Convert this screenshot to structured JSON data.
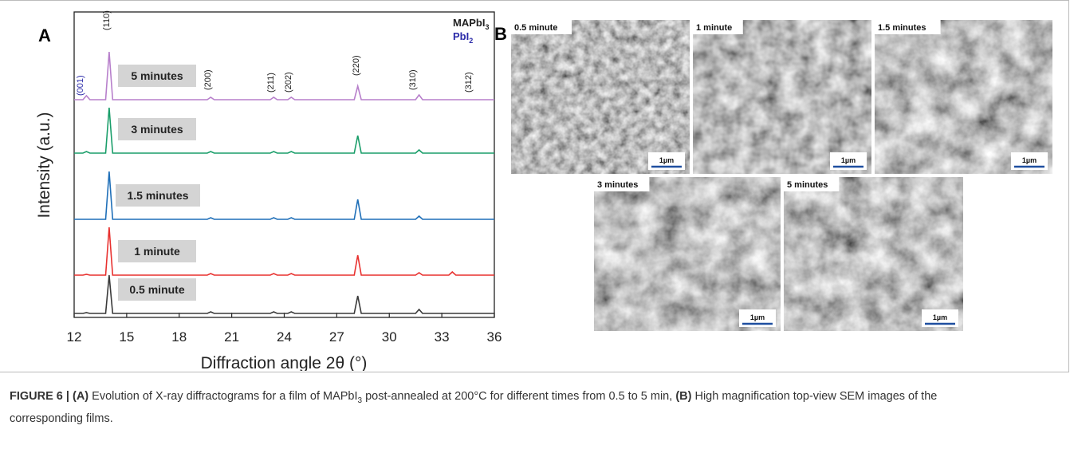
{
  "chart_data": {
    "type": "line",
    "panel": "A",
    "xlabel": "Diffraction angle 2θ (°)",
    "ylabel": "Intensity (a.u.)",
    "xlim": [
      12,
      36
    ],
    "xticks": [
      12,
      15,
      18,
      21,
      24,
      27,
      30,
      33,
      36
    ],
    "x": [
      12,
      12.5,
      12.7,
      12.9,
      13.8,
      14.0,
      14.2,
      19.6,
      19.8,
      20.0,
      23.2,
      23.4,
      23.6,
      24.2,
      24.4,
      24.6,
      28.0,
      28.2,
      28.4,
      31.5,
      31.7,
      31.9,
      33.4,
      33.6,
      33.8,
      36
    ],
    "series": [
      {
        "name": "0.5 minute",
        "color": "#3a3a3a",
        "values": [
          0,
          0,
          1,
          0,
          0,
          48,
          0,
          0,
          2,
          0,
          0,
          2,
          0,
          0,
          2,
          0,
          0,
          22,
          0,
          0,
          5,
          0,
          0,
          0,
          0,
          0
        ]
      },
      {
        "name": "1 minute",
        "color": "#e8312f",
        "values": [
          0,
          0,
          1,
          0,
          0,
          60,
          0,
          0,
          2,
          0,
          0,
          2,
          0,
          0,
          2,
          0,
          0,
          25,
          0,
          0,
          3,
          0,
          0,
          4,
          0,
          0
        ]
      },
      {
        "name": "1.5 minutes",
        "color": "#1f6fb8",
        "values": [
          0,
          0,
          0,
          0,
          0,
          60,
          0,
          0,
          2,
          0,
          0,
          2,
          0,
          0,
          2,
          0,
          0,
          25,
          0,
          0,
          4,
          0,
          0,
          0,
          0,
          0
        ]
      },
      {
        "name": "3 minutes",
        "color": "#1a9e6a",
        "values": [
          0,
          0,
          2,
          0,
          0,
          57,
          0,
          0,
          2,
          0,
          0,
          2,
          0,
          0,
          2,
          0,
          0,
          22,
          0,
          0,
          4,
          0,
          0,
          0,
          0,
          0
        ]
      },
      {
        "name": "5 minutes",
        "color": "#b77fcb",
        "values": [
          0,
          0,
          5,
          0,
          0,
          60,
          0,
          0,
          3,
          0,
          0,
          3,
          0,
          0,
          3,
          0,
          0,
          17,
          0,
          0,
          6,
          0,
          0,
          0,
          0,
          0
        ]
      }
    ],
    "annotations": [
      "(001)",
      "(110)",
      "(200)",
      "(211)",
      "(202)",
      "(220)",
      "(310)",
      "(312)"
    ],
    "legend": [
      {
        "text": "MAPbI",
        "sub": "3",
        "color": "#222222"
      },
      {
        "text": "PbI",
        "sub": "2",
        "color": "#2a2aa8"
      }
    ]
  },
  "sem": {
    "panel": "B",
    "images": [
      {
        "label": "0.5 minute",
        "scale": "1µm"
      },
      {
        "label": "1 minute",
        "scale": "1µm"
      },
      {
        "label": "1.5 minutes",
        "scale": "1µm"
      },
      {
        "label": "3 minutes",
        "scale": "1µm"
      },
      {
        "label": "5 minutes",
        "scale": "1µm"
      }
    ]
  },
  "caption": {
    "label": "FIGURE 6 |",
    "a": "(A)",
    "text1": " Evolution of X-ray diffractograms for a film of MAPbI",
    "sub": "3",
    "text2": " post-annealed at 200°C for different times from 0.5 to 5 min, ",
    "b": "(B)",
    "text3": " High magnification top-view SEM images of the corresponding films."
  }
}
